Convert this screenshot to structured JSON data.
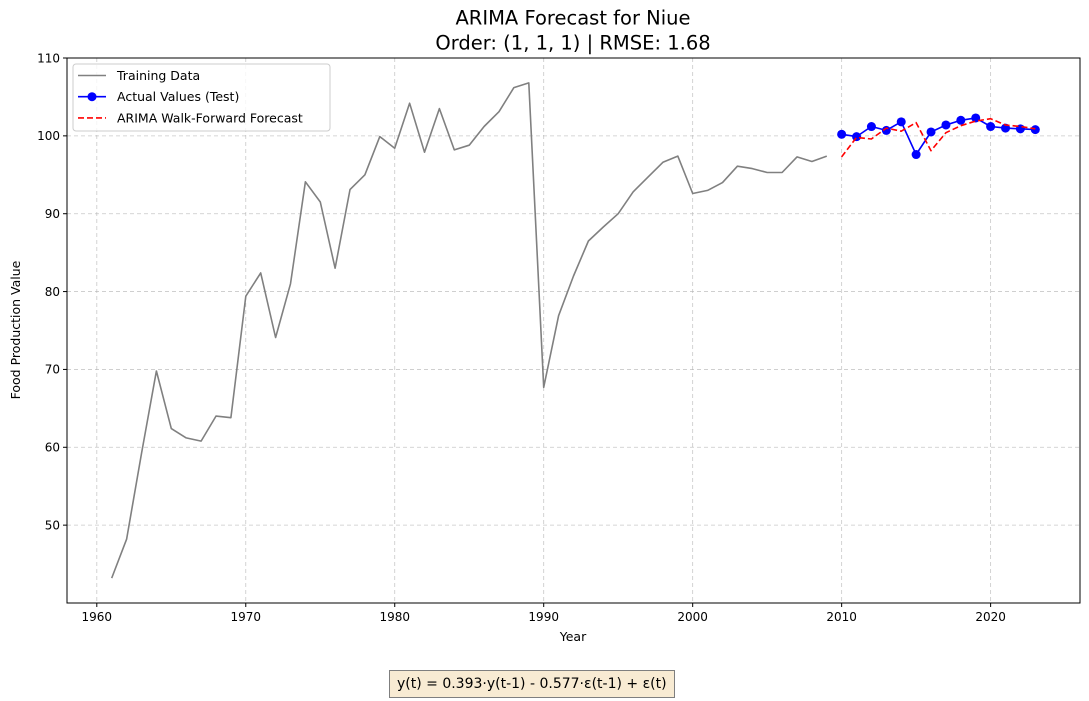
{
  "chart_data": {
    "type": "line",
    "title": "ARIMA Forecast for Niue",
    "subtitle": "Order: (1, 1, 1) | RMSE: 1.68",
    "xlabel": "Year",
    "ylabel": "Food Production Value",
    "xlim": [
      1958,
      2026
    ],
    "ylim": [
      40,
      110
    ],
    "xticks": [
      1960,
      1970,
      1980,
      1990,
      2000,
      2010,
      2020
    ],
    "yticks": [
      50,
      60,
      70,
      80,
      90,
      100,
      110
    ],
    "grid": true,
    "legend_position": "top-left",
    "series": [
      {
        "name": "Training Data",
        "color": "#808080",
        "style": "solid",
        "marker": "none",
        "x": [
          1961,
          1962,
          1963,
          1964,
          1965,
          1966,
          1967,
          1968,
          1969,
          1970,
          1971,
          1972,
          1973,
          1974,
          1975,
          1976,
          1977,
          1978,
          1979,
          1980,
          1981,
          1982,
          1983,
          1984,
          1985,
          1986,
          1987,
          1988,
          1989,
          1990,
          1991,
          1992,
          1993,
          1994,
          1995,
          1996,
          1997,
          1998,
          1999,
          2000,
          2001,
          2002,
          2003,
          2004,
          2005,
          2006,
          2007,
          2008,
          2009
        ],
        "y": [
          43.2,
          48.2,
          59.2,
          69.8,
          62.4,
          61.2,
          60.8,
          64.0,
          63.8,
          79.4,
          82.4,
          74.1,
          81.0,
          94.1,
          91.5,
          83.0,
          93.1,
          95.0,
          99.9,
          98.4,
          104.2,
          97.9,
          103.5,
          98.2,
          98.8,
          101.2,
          103.1,
          106.2,
          106.8,
          67.7,
          76.9,
          82.0,
          86.5,
          88.3,
          90.0,
          92.8,
          94.7,
          96.6,
          97.4,
          92.6,
          93.0,
          94.0,
          96.1,
          95.8,
          95.3,
          95.3,
          97.3,
          96.7,
          97.4
        ]
      },
      {
        "name": "Actual Values (Test)",
        "color": "#0000ff",
        "style": "solid",
        "marker": "circle",
        "x": [
          2010,
          2011,
          2012,
          2013,
          2014,
          2015,
          2016,
          2017,
          2018,
          2019,
          2020,
          2021,
          2022,
          2023
        ],
        "y": [
          100.2,
          99.9,
          101.2,
          100.7,
          101.8,
          97.6,
          100.5,
          101.4,
          102.0,
          102.3,
          101.2,
          101.0,
          100.9,
          100.8
        ]
      },
      {
        "name": "ARIMA Walk-Forward Forecast",
        "color": "#ff0000",
        "style": "dashed",
        "marker": "none",
        "x": [
          2010,
          2011,
          2012,
          2013,
          2014,
          2015,
          2016,
          2017,
          2018,
          2019,
          2020,
          2021,
          2022,
          2023
        ],
        "y": [
          97.3,
          99.8,
          99.6,
          101.0,
          100.6,
          101.7,
          98.1,
          100.4,
          101.3,
          101.9,
          102.2,
          101.4,
          101.2,
          100.9
        ]
      }
    ]
  },
  "equation": "y(t) =  0.393·y(t-1) - 0.577·ε(t-1) + ε(t)"
}
